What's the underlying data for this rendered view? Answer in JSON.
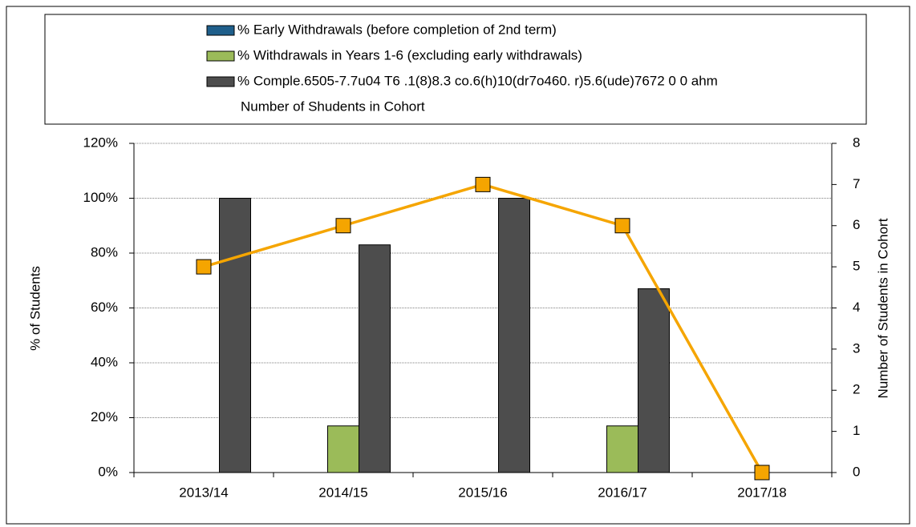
{
  "chart_data": {
    "type": "bar",
    "categories": [
      "2013/14",
      "2014/15",
      "2015/16",
      "2016/17",
      "2017/18"
    ],
    "series": [
      {
        "name": "% Early Withdrawals (before completion of 2nd term)",
        "color": "#1f5f8b",
        "values": [
          0,
          0,
          0,
          0,
          0
        ]
      },
      {
        "name": "% Withdrawals in Years 1-6 (excluding early withdrawals)",
        "color": "#9bbb59",
        "values": [
          0,
          17,
          0,
          17,
          0
        ]
      },
      {
        "name": "% Comple.6505-7.7u04 T6 .1(8)8.3 co.6(h)10(dr7o460. r)5.6(ude)7672 0 0 ahm",
        "color": "#4d4d4d",
        "values": [
          100,
          83,
          100,
          67,
          0
        ]
      },
      {
        "name": "Number of Shudents in Cohort",
        "color": "#f5a500",
        "type": "line",
        "axis": "y2",
        "values": [
          5,
          6,
          7,
          6,
          0
        ]
      }
    ],
    "ylabel": "% of Students",
    "y2label": "Number of Students in Cohort",
    "ylim": [
      0,
      120
    ],
    "yticks": [
      {
        "value": 0,
        "label": "0%"
      },
      {
        "value": 20,
        "label": "20%"
      },
      {
        "value": 40,
        "label": "40%"
      },
      {
        "value": 60,
        "label": "60%"
      },
      {
        "value": 80,
        "label": "80%"
      },
      {
        "value": 100,
        "label": "100%"
      },
      {
        "value": 120,
        "label": "120%"
      }
    ],
    "y2lim": [
      0,
      8
    ],
    "y2ticks": [
      0,
      1,
      2,
      3,
      4,
      5,
      6,
      7,
      8
    ],
    "grid": true,
    "legend": "top"
  }
}
